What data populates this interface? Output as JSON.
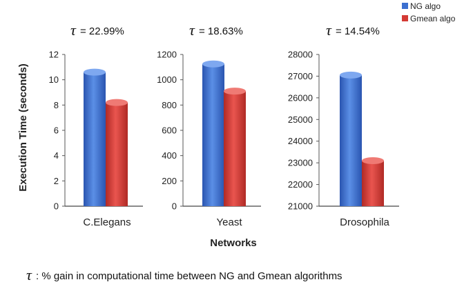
{
  "chart_data": {
    "type": "bar",
    "ylabel": "Execution Time (seconds)",
    "xlabel": "Networks",
    "tau_symbol": "τ",
    "legend": {
      "placement": "top-right",
      "entries": [
        {
          "name": "NG algo",
          "color": "#3b6fd0"
        },
        {
          "name": "Gmean algo",
          "color": "#d43a34"
        }
      ]
    },
    "footnote": ": % gain in computational time between NG and Gmean algorithms",
    "panels": [
      {
        "category": "C.Elegans",
        "gain_label": "= 22.99%",
        "ylim": [
          0,
          12
        ],
        "yticks": [
          0,
          2,
          4,
          6,
          8,
          10,
          12
        ],
        "ytick_labels": [
          "0",
          "2",
          "4",
          "6",
          "8",
          "10",
          "12"
        ],
        "series": [
          {
            "name": "NG algo",
            "value": 10.6
          },
          {
            "name": "Gmean algo",
            "value": 8.2
          }
        ]
      },
      {
        "category": "Yeast",
        "gain_label": "= 18.63%",
        "ylim": [
          0,
          1200
        ],
        "yticks": [
          0,
          200,
          400,
          600,
          800,
          1000,
          1200
        ],
        "ytick_labels": [
          "0",
          "200",
          "400",
          "600",
          "800",
          "1000",
          "1200"
        ],
        "series": [
          {
            "name": "NG algo",
            "value": 1125
          },
          {
            "name": "Gmean algo",
            "value": 910
          }
        ]
      },
      {
        "category": "Drosophila",
        "gain_label": "= 14.54%",
        "ylim": [
          21000,
          28000
        ],
        "yticks": [
          21000,
          22000,
          23000,
          24000,
          25000,
          26000,
          27000,
          28000
        ],
        "ytick_labels": [
          "21000",
          "22000",
          "23000",
          "24000",
          "25000",
          "26000",
          "27000",
          "28000"
        ],
        "series": [
          {
            "name": "NG algo",
            "value": 27050
          },
          {
            "name": "Gmean algo",
            "value": 23100
          }
        ]
      }
    ]
  }
}
